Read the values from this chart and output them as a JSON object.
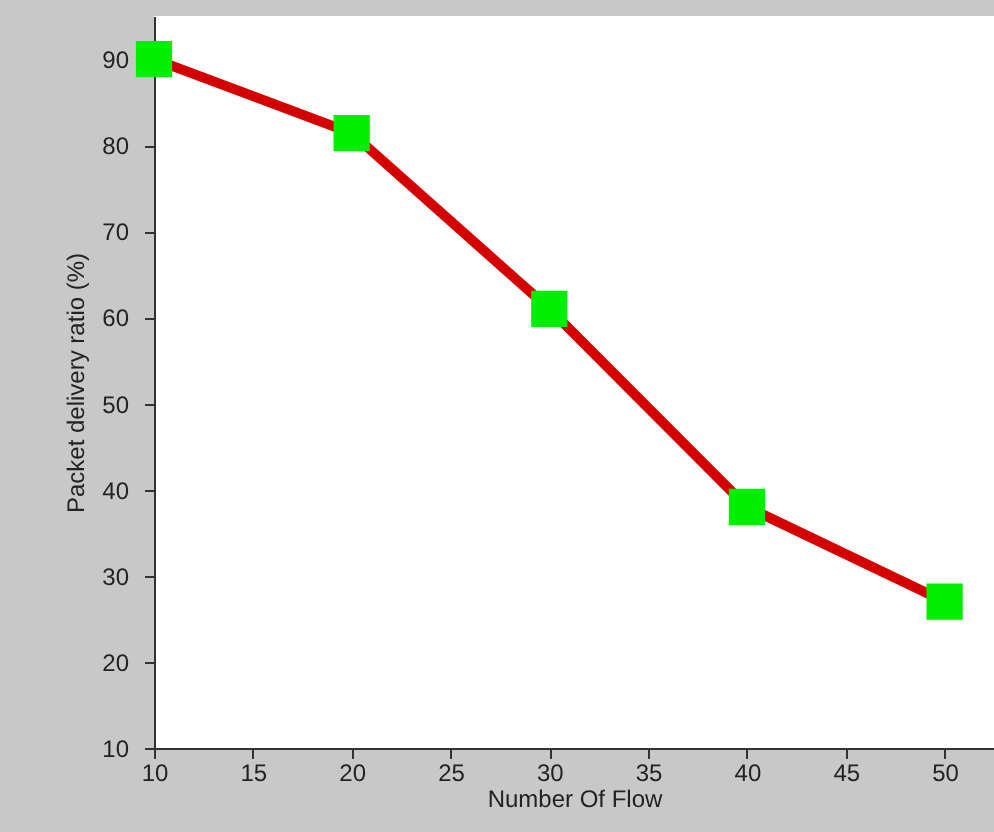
{
  "chart_data": {
    "type": "line",
    "xlabel": "Number Of Flow",
    "ylabel": "Packet delivery ratio (%)",
    "x": [
      10,
      20,
      30,
      40,
      50
    ],
    "series": [
      {
        "color": "#d40000",
        "values": [
          90,
          81.4,
          61,
          38,
          27
        ]
      }
    ],
    "xlim": [
      10,
      52.5
    ],
    "xticks": [
      10,
      15,
      20,
      25,
      30,
      35,
      40,
      45,
      50
    ],
    "ylim": [
      10,
      95
    ],
    "yticks": [
      10,
      20,
      30,
      40,
      50,
      60,
      70,
      80,
      90
    ],
    "grid": false,
    "marker": "square",
    "line_style": "solid"
  }
}
